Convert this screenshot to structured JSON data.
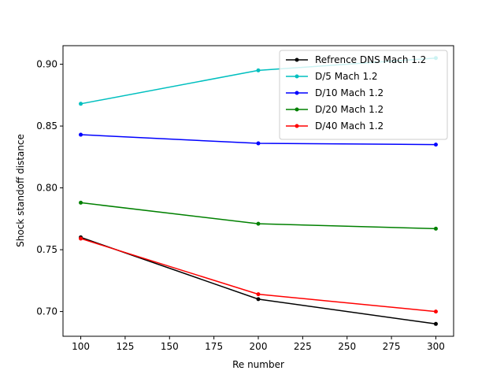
{
  "chart_data": {
    "type": "line",
    "title": "",
    "xlabel": "Re number",
    "ylabel": "Shock standoff distance",
    "xlim": [
      90,
      310
    ],
    "ylim": [
      0.68,
      0.915
    ],
    "xticks": [
      100,
      125,
      150,
      175,
      200,
      225,
      250,
      275,
      300
    ],
    "xtick_labels": [
      "100",
      "125",
      "150",
      "175",
      "200",
      "225",
      "250",
      "275",
      "300"
    ],
    "yticks": [
      0.7,
      0.75,
      0.8,
      0.85,
      0.9
    ],
    "ytick_labels": [
      "0.70",
      "0.75",
      "0.80",
      "0.85",
      "0.90"
    ],
    "grid": false,
    "legend_position": "top-right",
    "x": [
      100,
      200,
      300
    ],
    "series": [
      {
        "name": "Refrence DNS Mach 1.2",
        "color": "#000000",
        "values": [
          0.76,
          0.71,
          0.69
        ]
      },
      {
        "name": "D/5 Mach 1.2",
        "color": "#00bfbf",
        "values": [
          0.868,
          0.895,
          0.905
        ]
      },
      {
        "name": "D/10 Mach 1.2",
        "color": "#0000ff",
        "values": [
          0.843,
          0.836,
          0.835
        ]
      },
      {
        "name": "D/20 Mach 1.2",
        "color": "#008000",
        "values": [
          0.788,
          0.771,
          0.767
        ]
      },
      {
        "name": "D/40 Mach 1.2",
        "color": "#ff0000",
        "values": [
          0.759,
          0.714,
          0.7
        ]
      }
    ]
  }
}
